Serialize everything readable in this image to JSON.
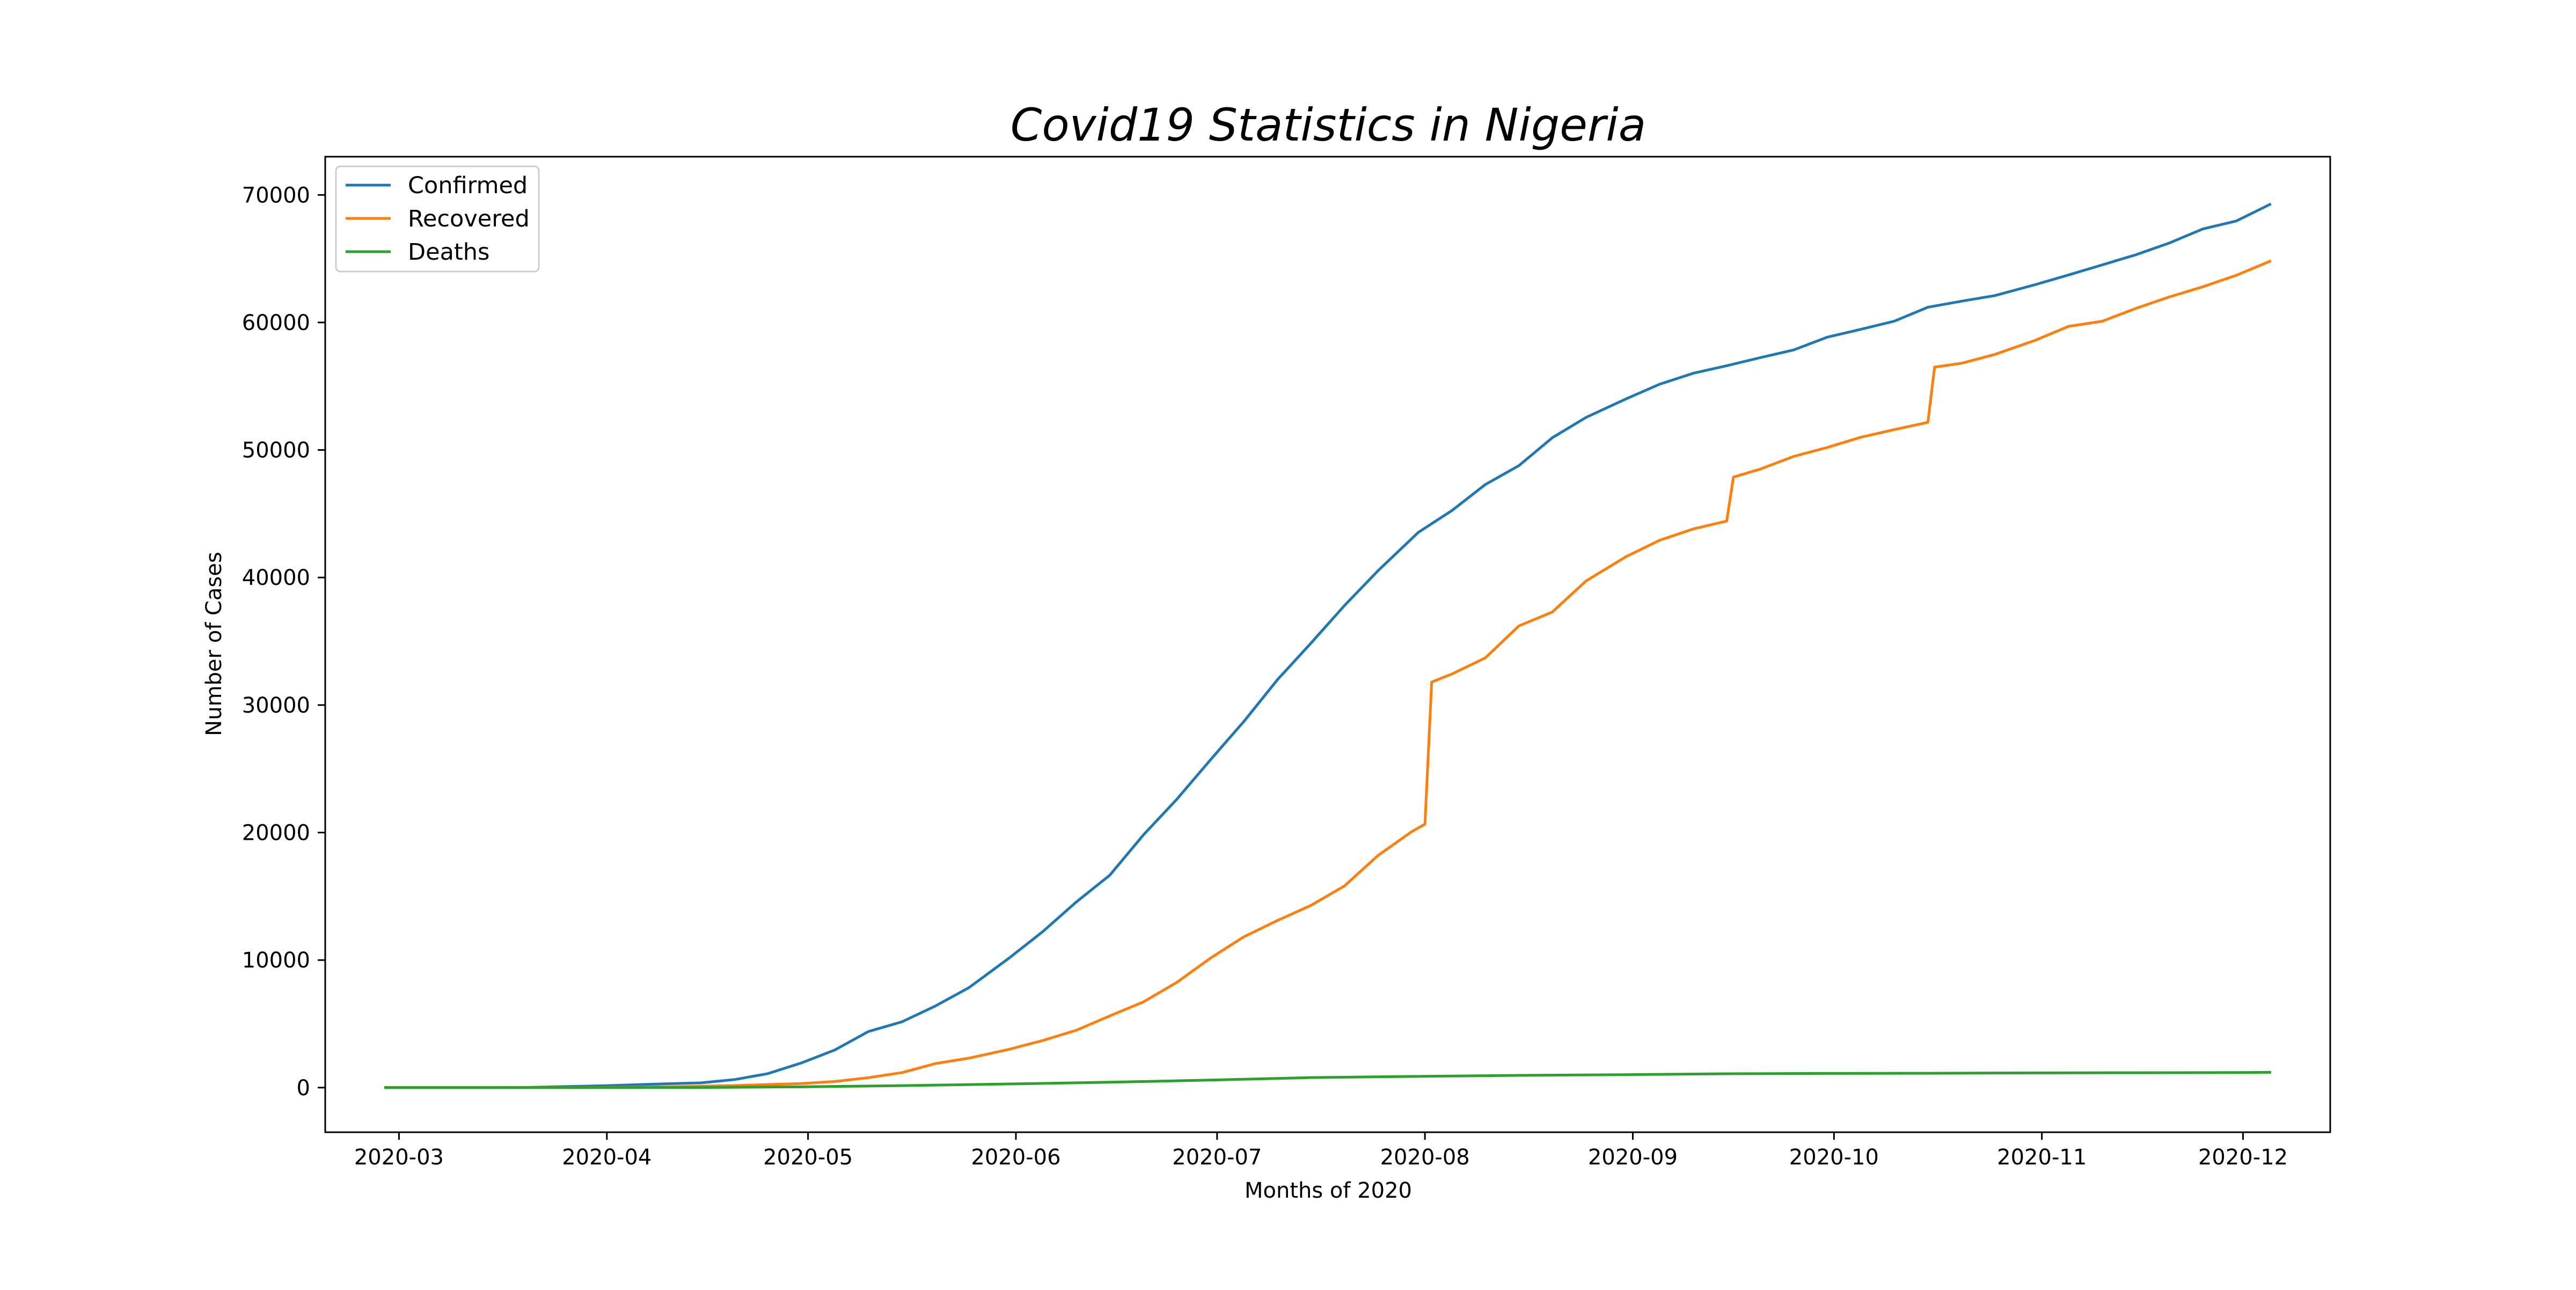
{
  "chart_data": {
    "type": "line",
    "title": "Covid19 Statistics in Nigeria",
    "xlabel": "Months of 2020",
    "ylabel": "Number of Cases",
    "ylim": [
      -3500,
      73000
    ],
    "xlim": [
      "2020-02-19",
      "2020-12-14"
    ],
    "grid": false,
    "legend_position": "top-left",
    "x_ticks": [
      "2020-03",
      "2020-04",
      "2020-05",
      "2020-06",
      "2020-07",
      "2020-08",
      "2020-09",
      "2020-10",
      "2020-11",
      "2020-12"
    ],
    "y_ticks": [
      0,
      10000,
      20000,
      30000,
      40000,
      50000,
      60000,
      70000
    ],
    "series": [
      {
        "name": "Confirmed",
        "color": "#1f77b4",
        "points": [
          [
            "2020-02-28",
            1
          ],
          [
            "2020-03-10",
            2
          ],
          [
            "2020-03-20",
            12
          ],
          [
            "2020-03-31",
            139
          ],
          [
            "2020-04-10",
            305
          ],
          [
            "2020-04-15",
            373
          ],
          [
            "2020-04-20",
            627
          ],
          [
            "2020-04-25",
            1095
          ],
          [
            "2020-04-30",
            1932
          ],
          [
            "2020-05-05",
            2950
          ],
          [
            "2020-05-10",
            4399
          ],
          [
            "2020-05-15",
            5162
          ],
          [
            "2020-05-20",
            6401
          ],
          [
            "2020-05-25",
            7839
          ],
          [
            "2020-05-31",
            10162
          ],
          [
            "2020-06-05",
            12233
          ],
          [
            "2020-06-10",
            14554
          ],
          [
            "2020-06-15",
            16658
          ],
          [
            "2020-06-20",
            19808
          ],
          [
            "2020-06-25",
            22614
          ],
          [
            "2020-06-30",
            25694
          ],
          [
            "2020-07-05",
            28711
          ],
          [
            "2020-07-10",
            31987
          ],
          [
            "2020-07-15",
            34854
          ],
          [
            "2020-07-20",
            37801
          ],
          [
            "2020-07-25",
            40532
          ],
          [
            "2020-07-31",
            43537
          ],
          [
            "2020-08-05",
            45244
          ],
          [
            "2020-08-10",
            47290
          ],
          [
            "2020-08-15",
            48770
          ],
          [
            "2020-08-20",
            50964
          ],
          [
            "2020-08-25",
            52548
          ],
          [
            "2020-08-31",
            54008
          ],
          [
            "2020-09-05",
            55160
          ],
          [
            "2020-09-10",
            56017
          ],
          [
            "2020-09-15",
            56604
          ],
          [
            "2020-09-20",
            57242
          ],
          [
            "2020-09-25",
            57849
          ],
          [
            "2020-09-30",
            58848
          ],
          [
            "2020-10-05",
            59465
          ],
          [
            "2020-10-10",
            60103
          ],
          [
            "2020-10-15",
            61194
          ],
          [
            "2020-10-20",
            61667
          ],
          [
            "2020-10-25",
            62111
          ],
          [
            "2020-10-31",
            62964
          ],
          [
            "2020-11-05",
            63731
          ],
          [
            "2020-11-10",
            64516
          ],
          [
            "2020-11-15",
            65305
          ],
          [
            "2020-11-20",
            66228
          ],
          [
            "2020-11-25",
            67330
          ],
          [
            "2020-11-30",
            67960
          ],
          [
            "2020-12-05",
            69255
          ]
        ]
      },
      {
        "name": "Recovered",
        "color": "#ff7f0e",
        "points": [
          [
            "2020-02-28",
            0
          ],
          [
            "2020-03-20",
            2
          ],
          [
            "2020-03-31",
            9
          ],
          [
            "2020-04-10",
            70
          ],
          [
            "2020-04-20",
            159
          ],
          [
            "2020-04-30",
            319
          ],
          [
            "2020-05-05",
            482
          ],
          [
            "2020-05-10",
            778
          ],
          [
            "2020-05-15",
            1180
          ],
          [
            "2020-05-20",
            1886
          ],
          [
            "2020-05-25",
            2311
          ],
          [
            "2020-05-31",
            3007
          ],
          [
            "2020-06-05",
            3696
          ],
          [
            "2020-06-10",
            4494
          ],
          [
            "2020-06-15",
            5623
          ],
          [
            "2020-06-20",
            6718
          ],
          [
            "2020-06-25",
            8253
          ],
          [
            "2020-06-30",
            10152
          ],
          [
            "2020-07-05",
            11828
          ],
          [
            "2020-07-10",
            13103
          ],
          [
            "2020-07-15",
            14292
          ],
          [
            "2020-07-20",
            15815
          ],
          [
            "2020-07-25",
            18203
          ],
          [
            "2020-07-30",
            20066
          ],
          [
            "2020-08-01",
            20663
          ],
          [
            "2020-08-02",
            31801
          ],
          [
            "2020-08-05",
            32430
          ],
          [
            "2020-08-10",
            33700
          ],
          [
            "2020-08-15",
            36200
          ],
          [
            "2020-08-20",
            37300
          ],
          [
            "2020-08-25",
            39725
          ],
          [
            "2020-08-31",
            41638
          ],
          [
            "2020-09-05",
            42922
          ],
          [
            "2020-09-10",
            43810
          ],
          [
            "2020-09-15",
            44430
          ],
          [
            "2020-09-16",
            47872
          ],
          [
            "2020-09-20",
            48500
          ],
          [
            "2020-09-25",
            49500
          ],
          [
            "2020-09-30",
            50200
          ],
          [
            "2020-10-05",
            51000
          ],
          [
            "2020-10-10",
            51600
          ],
          [
            "2020-10-15",
            52170
          ],
          [
            "2020-10-16",
            56500
          ],
          [
            "2020-10-20",
            56800
          ],
          [
            "2020-10-25",
            57500
          ],
          [
            "2020-10-31",
            58600
          ],
          [
            "2020-11-05",
            59700
          ],
          [
            "2020-11-10",
            60100
          ],
          [
            "2020-11-15",
            61100
          ],
          [
            "2020-11-20",
            62000
          ],
          [
            "2020-11-25",
            62800
          ],
          [
            "2020-11-30",
            63700
          ],
          [
            "2020-12-05",
            64800
          ]
        ]
      },
      {
        "name": "Deaths",
        "color": "#2ca02c",
        "points": [
          [
            "2020-02-28",
            0
          ],
          [
            "2020-03-31",
            2
          ],
          [
            "2020-04-15",
            11
          ],
          [
            "2020-04-30",
            58
          ],
          [
            "2020-05-15",
            158
          ],
          [
            "2020-05-31",
            287
          ],
          [
            "2020-06-15",
            420
          ],
          [
            "2020-06-30",
            590
          ],
          [
            "2020-07-15",
            789
          ],
          [
            "2020-07-31",
            879
          ],
          [
            "2020-08-15",
            960
          ],
          [
            "2020-08-31",
            1013
          ],
          [
            "2020-09-15",
            1088
          ],
          [
            "2020-09-30",
            1112
          ],
          [
            "2020-10-15",
            1125
          ],
          [
            "2020-10-31",
            1152
          ],
          [
            "2020-11-15",
            1165
          ],
          [
            "2020-11-30",
            1180
          ],
          [
            "2020-12-05",
            1200
          ]
        ]
      }
    ]
  }
}
